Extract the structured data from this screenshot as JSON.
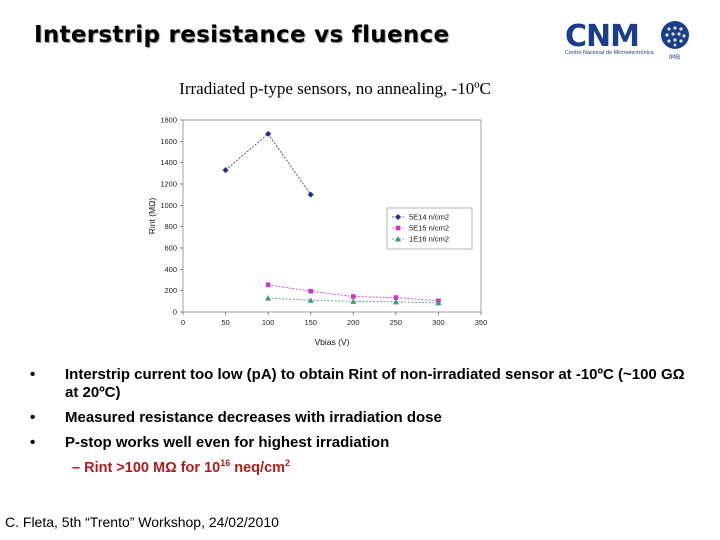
{
  "slide": {
    "title": "Interstrip resistance vs fluence",
    "subtitle": "Irradiated p-type sensors, no annealing, -10ºC",
    "logo": {
      "text": "CNM",
      "caption": "Centro Nacional de Microelectrónica",
      "tag": "IMB"
    },
    "bullets": [
      {
        "marker": "•",
        "text": "Interstrip current too low (pA) to obtain Rint of non-irradiated sensor at -10ºC (~100 GΩ at 20ºC)"
      },
      {
        "marker": "•",
        "text": "Measured resistance decreases with irradiation dose"
      },
      {
        "marker": "•",
        "text": "P-stop works well even for highest irradiation"
      }
    ],
    "subbullet": {
      "prefix": "–  Rint >100 MΩ for 10",
      "sup_exponent": "16",
      "suffix": " neq/cm",
      "sup_square": "2"
    },
    "footer": "C. Fleta, 5th “Trento” Workshop, 24/02/2010"
  },
  "chart_data": {
    "type": "scatter",
    "xlabel": "Vbias (V)",
    "ylabel": "Rint (MΩ)",
    "xlim": [
      0,
      350
    ],
    "ylim": [
      0,
      1800
    ],
    "xticks": [
      0,
      50,
      100,
      150,
      200,
      250,
      300,
      350
    ],
    "yticks": [
      0,
      200,
      400,
      600,
      800,
      1000,
      1200,
      1400,
      1600,
      1800
    ],
    "grid": false,
    "legend_position": "right",
    "series": [
      {
        "name": "5E14 n/cm2",
        "color": "#1f2b8c",
        "marker": "diamond",
        "x": [
          50,
          100,
          150
        ],
        "y": [
          1330,
          1670,
          1100
        ]
      },
      {
        "name": "5E15 n/cm2",
        "color": "#cc33cc",
        "marker": "square",
        "x": [
          100,
          150,
          200,
          250,
          300
        ],
        "y": [
          255,
          195,
          145,
          135,
          105
        ]
      },
      {
        "name": "1E16 n/cm2",
        "color": "#3a9a7a",
        "marker": "triangle",
        "x": [
          100,
          150,
          200,
          250,
          300
        ],
        "y": [
          130,
          110,
          100,
          95,
          85
        ]
      }
    ]
  }
}
